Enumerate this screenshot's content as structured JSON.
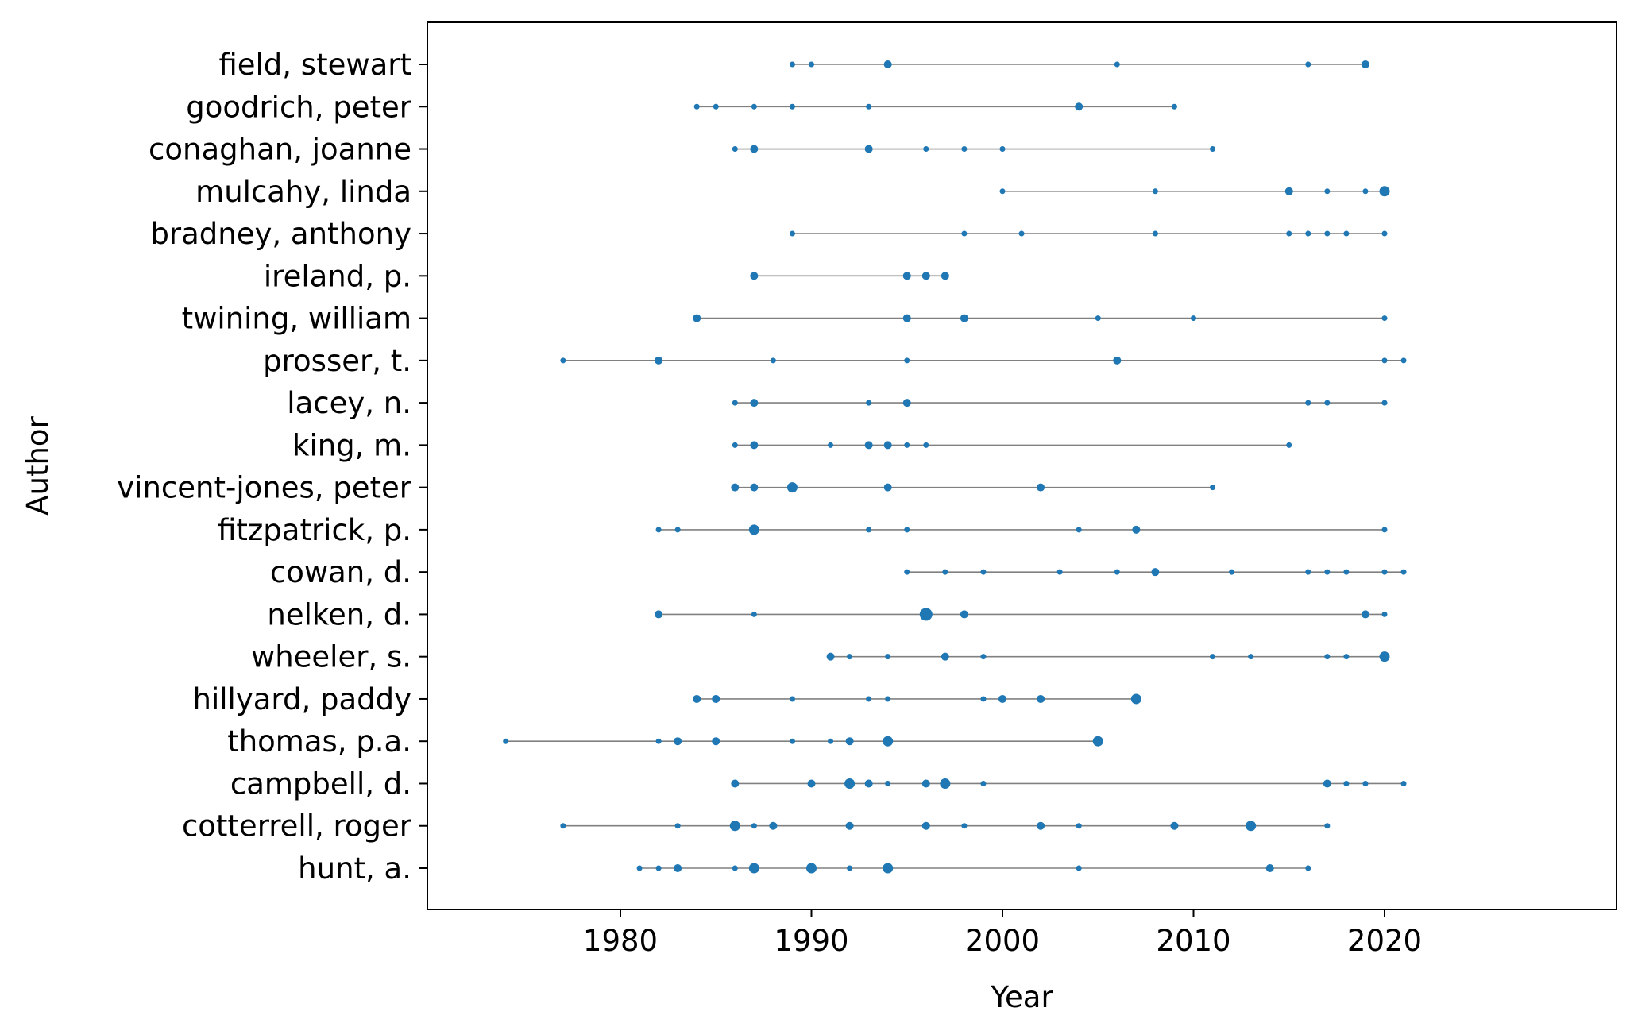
{
  "chart_data": {
    "type": "scatter",
    "title": "",
    "xlabel": "Year",
    "ylabel": "Author",
    "xlim": [
      1971.8,
      2023.2
    ],
    "xticks": [
      1980,
      1990,
      2000,
      2010,
      2020
    ],
    "grid": false,
    "colors": {
      "marker": "#1f77b4",
      "line": "#808080",
      "axis": "#000000"
    },
    "authors": [
      {
        "name": "field, stewart",
        "points": [
          [
            1989,
            1
          ],
          [
            1990,
            1
          ],
          [
            1994,
            2
          ],
          [
            2006,
            1
          ],
          [
            2016,
            1
          ],
          [
            2019,
            2
          ]
        ]
      },
      {
        "name": "goodrich, peter",
        "points": [
          [
            1984,
            1
          ],
          [
            1985,
            1
          ],
          [
            1987,
            1
          ],
          [
            1989,
            1
          ],
          [
            1993,
            1
          ],
          [
            2004,
            2
          ],
          [
            2009,
            1
          ]
        ]
      },
      {
        "name": "conaghan, joanne",
        "points": [
          [
            1986,
            1
          ],
          [
            1987,
            2
          ],
          [
            1993,
            2
          ],
          [
            1996,
            1
          ],
          [
            1998,
            1
          ],
          [
            2000,
            1
          ],
          [
            2011,
            1
          ]
        ]
      },
      {
        "name": "mulcahy, linda",
        "points": [
          [
            2000,
            1
          ],
          [
            2008,
            1
          ],
          [
            2015,
            2
          ],
          [
            2017,
            1
          ],
          [
            2019,
            1
          ],
          [
            2020,
            3
          ]
        ]
      },
      {
        "name": "bradney, anthony",
        "points": [
          [
            1989,
            1
          ],
          [
            1998,
            1
          ],
          [
            2001,
            1
          ],
          [
            2008,
            1
          ],
          [
            2015,
            1
          ],
          [
            2016,
            1
          ],
          [
            2017,
            1
          ],
          [
            2018,
            1
          ],
          [
            2020,
            1
          ]
        ]
      },
      {
        "name": "ireland, p.",
        "points": [
          [
            1987,
            2
          ],
          [
            1995,
            2
          ],
          [
            1996,
            2
          ],
          [
            1997,
            2
          ]
        ]
      },
      {
        "name": "twining, william",
        "points": [
          [
            1984,
            2
          ],
          [
            1995,
            2
          ],
          [
            1998,
            2
          ],
          [
            2005,
            1
          ],
          [
            2010,
            1
          ],
          [
            2020,
            1
          ]
        ]
      },
      {
        "name": "prosser, t.",
        "points": [
          [
            1977,
            1
          ],
          [
            1982,
            2
          ],
          [
            1988,
            1
          ],
          [
            1995,
            1
          ],
          [
            2006,
            2
          ],
          [
            2020,
            1
          ],
          [
            2021,
            1
          ]
        ]
      },
      {
        "name": "lacey, n.",
        "points": [
          [
            1986,
            1
          ],
          [
            1987,
            2
          ],
          [
            1993,
            1
          ],
          [
            1995,
            2
          ],
          [
            2016,
            1
          ],
          [
            2017,
            1
          ],
          [
            2020,
            1
          ]
        ]
      },
      {
        "name": "king, m.",
        "points": [
          [
            1986,
            1
          ],
          [
            1987,
            2
          ],
          [
            1991,
            1
          ],
          [
            1993,
            2
          ],
          [
            1994,
            2
          ],
          [
            1995,
            1
          ],
          [
            1996,
            1
          ],
          [
            2015,
            1
          ]
        ]
      },
      {
        "name": "vincent-jones, peter",
        "points": [
          [
            1986,
            2
          ],
          [
            1987,
            2
          ],
          [
            1989,
            3
          ],
          [
            1994,
            2
          ],
          [
            2002,
            2
          ],
          [
            2011,
            1
          ]
        ]
      },
      {
        "name": "fitzpatrick, p.",
        "points": [
          [
            1982,
            1
          ],
          [
            1983,
            1
          ],
          [
            1987,
            3
          ],
          [
            1993,
            1
          ],
          [
            1995,
            1
          ],
          [
            2004,
            1
          ],
          [
            2007,
            2
          ],
          [
            2020,
            1
          ]
        ]
      },
      {
        "name": "cowan, d.",
        "points": [
          [
            1995,
            1
          ],
          [
            1997,
            1
          ],
          [
            1999,
            1
          ],
          [
            2003,
            1
          ],
          [
            2006,
            1
          ],
          [
            2008,
            2
          ],
          [
            2012,
            1
          ],
          [
            2016,
            1
          ],
          [
            2017,
            1
          ],
          [
            2018,
            1
          ],
          [
            2020,
            1
          ],
          [
            2021,
            1
          ]
        ]
      },
      {
        "name": "nelken, d.",
        "points": [
          [
            1982,
            2
          ],
          [
            1987,
            1
          ],
          [
            1996,
            4
          ],
          [
            1998,
            2
          ],
          [
            2019,
            2
          ],
          [
            2020,
            1
          ]
        ]
      },
      {
        "name": "wheeler, s.",
        "points": [
          [
            1991,
            2
          ],
          [
            1992,
            1
          ],
          [
            1994,
            1
          ],
          [
            1997,
            2
          ],
          [
            1999,
            1
          ],
          [
            2011,
            1
          ],
          [
            2013,
            1
          ],
          [
            2017,
            1
          ],
          [
            2018,
            1
          ],
          [
            2020,
            3
          ]
        ]
      },
      {
        "name": "hillyard, paddy",
        "points": [
          [
            1984,
            2
          ],
          [
            1985,
            2
          ],
          [
            1989,
            1
          ],
          [
            1993,
            1
          ],
          [
            1994,
            1
          ],
          [
            1999,
            1
          ],
          [
            2000,
            2
          ],
          [
            2002,
            2
          ],
          [
            2007,
            3
          ]
        ]
      },
      {
        "name": "thomas, p.a.",
        "points": [
          [
            1974,
            1
          ],
          [
            1982,
            1
          ],
          [
            1983,
            2
          ],
          [
            1985,
            2
          ],
          [
            1989,
            1
          ],
          [
            1991,
            1
          ],
          [
            1992,
            2
          ],
          [
            1994,
            3
          ],
          [
            2005,
            3
          ]
        ]
      },
      {
        "name": "campbell, d.",
        "points": [
          [
            1986,
            2
          ],
          [
            1990,
            2
          ],
          [
            1992,
            3
          ],
          [
            1993,
            2
          ],
          [
            1994,
            1
          ],
          [
            1996,
            2
          ],
          [
            1997,
            3
          ],
          [
            1999,
            1
          ],
          [
            2017,
            2
          ],
          [
            2018,
            1
          ],
          [
            2019,
            1
          ],
          [
            2021,
            1
          ]
        ]
      },
      {
        "name": "cotterrell, roger",
        "points": [
          [
            1977,
            1
          ],
          [
            1983,
            1
          ],
          [
            1986,
            3
          ],
          [
            1987,
            1
          ],
          [
            1988,
            2
          ],
          [
            1992,
            2
          ],
          [
            1996,
            2
          ],
          [
            1998,
            1
          ],
          [
            2002,
            2
          ],
          [
            2004,
            1
          ],
          [
            2009,
            2
          ],
          [
            2013,
            3
          ],
          [
            2017,
            1
          ]
        ]
      },
      {
        "name": "hunt, a.",
        "points": [
          [
            1981,
            1
          ],
          [
            1982,
            1
          ],
          [
            1983,
            2
          ],
          [
            1986,
            1
          ],
          [
            1987,
            3
          ],
          [
            1990,
            3
          ],
          [
            1992,
            1
          ],
          [
            1994,
            3
          ],
          [
            2004,
            1
          ],
          [
            2014,
            2
          ],
          [
            2016,
            1
          ]
        ]
      }
    ]
  }
}
